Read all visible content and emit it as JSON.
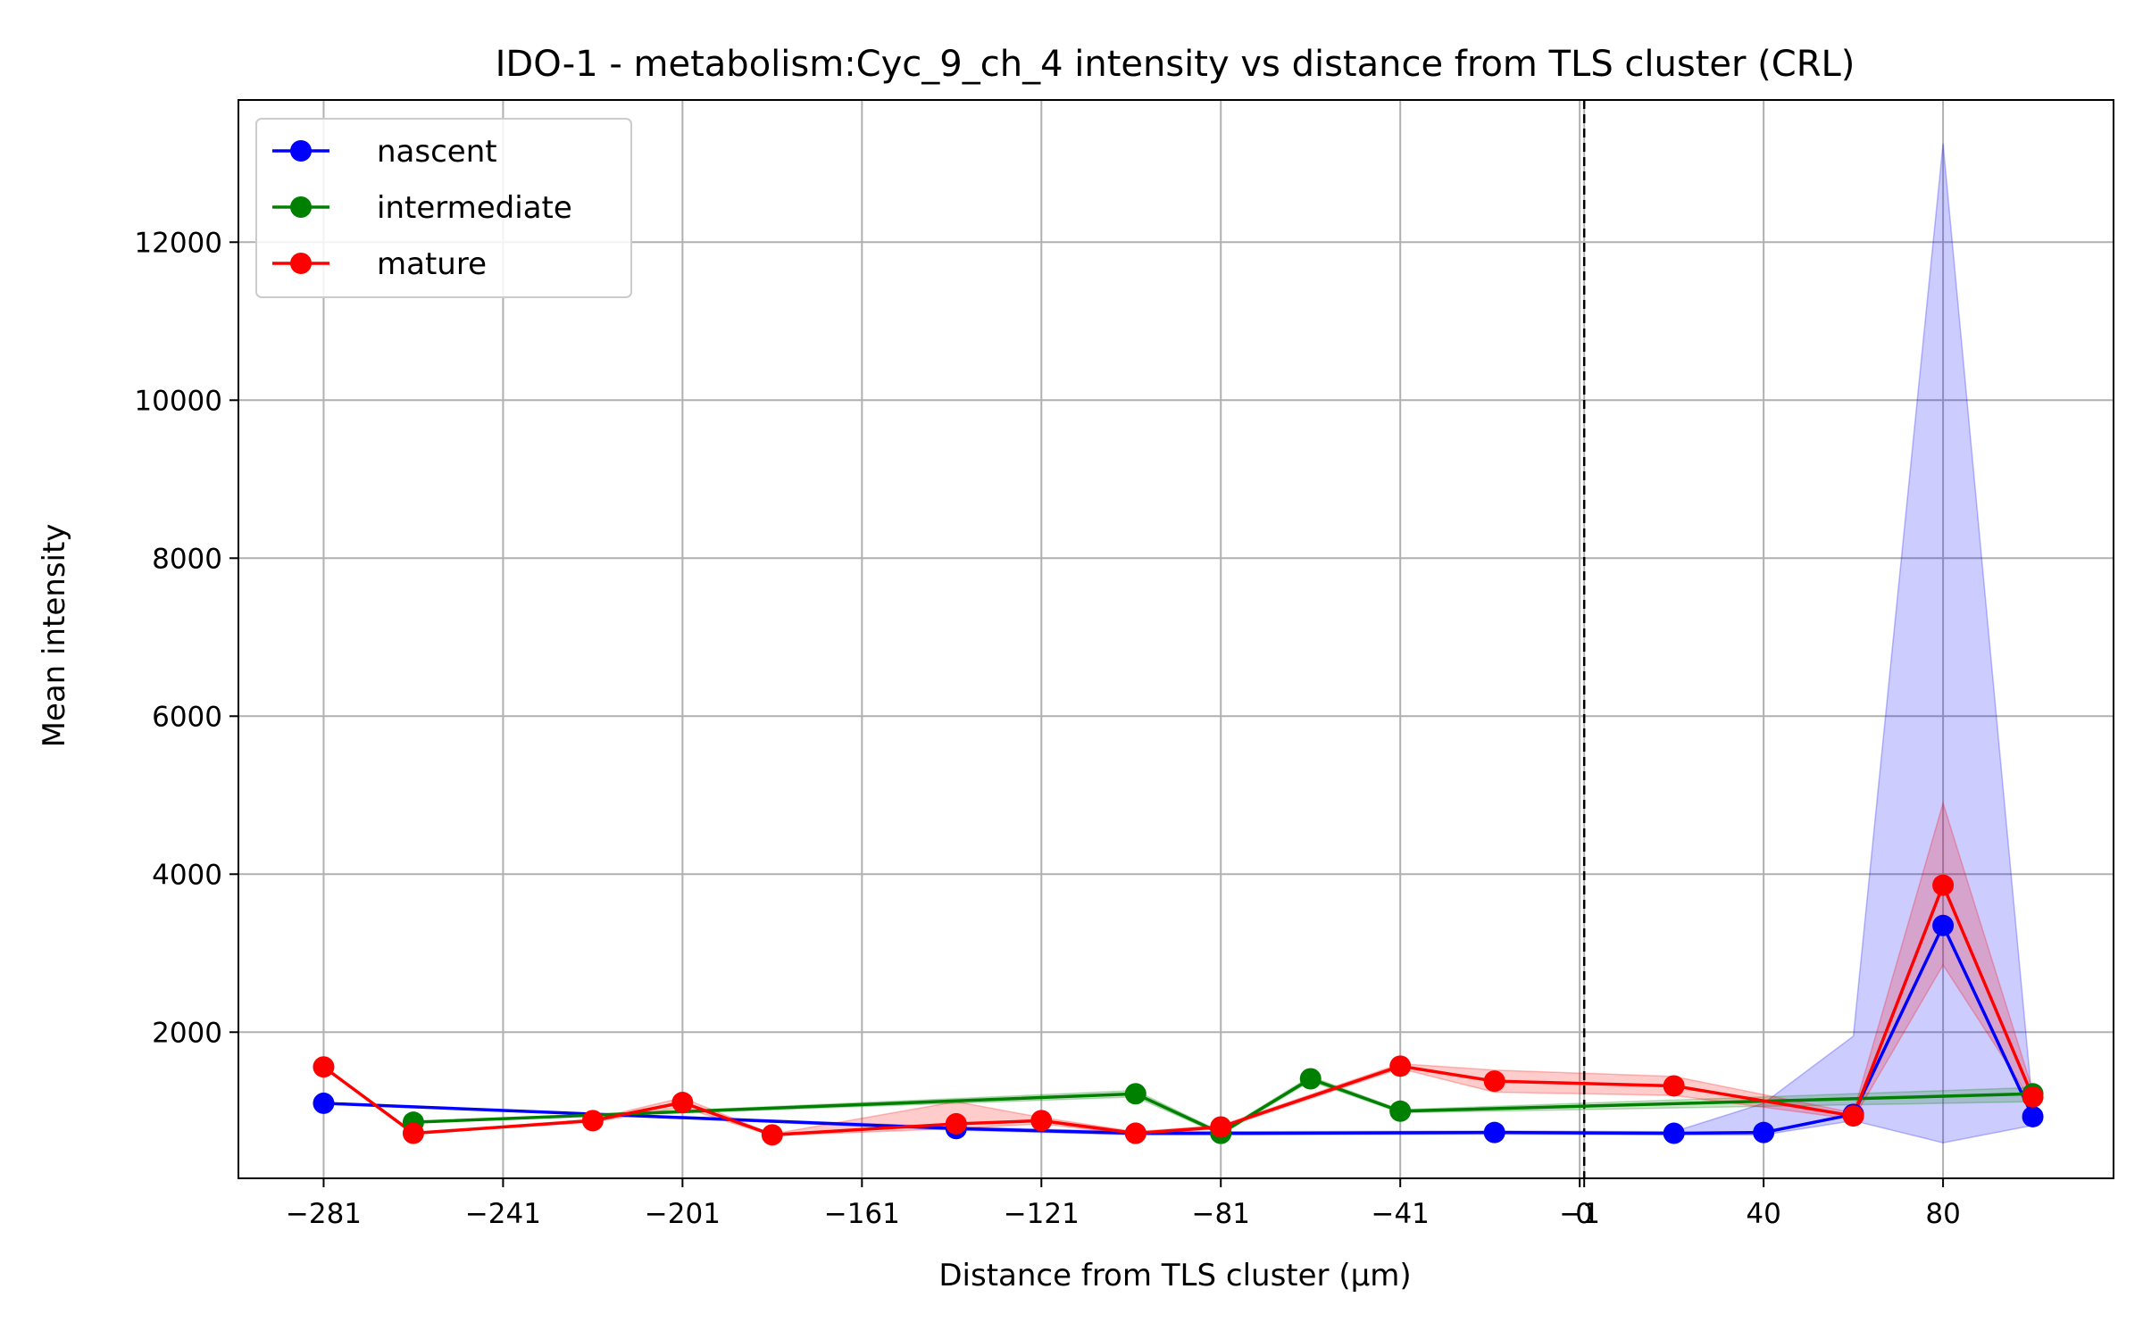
{
  "chart_data": {
    "type": "line",
    "title": "IDO-1 - metabolism:Cyc_9_ch_4 intensity vs distance from TLS cluster (CRL)",
    "xlabel": "Distance from TLS cluster (μm)",
    "ylabel": "Mean intensity",
    "xlim": [
      -300,
      118
    ],
    "ylim": [
      150,
      13800
    ],
    "x_ticks": [
      -281,
      -241,
      -201,
      -161,
      -121,
      -81,
      -41,
      -1,
      0,
      40,
      80
    ],
    "x_tick_labels": [
      "−281",
      "−241",
      "−201",
      "−161",
      "−121",
      "−81",
      "−41",
      "−1",
      "0",
      "40",
      "80"
    ],
    "y_ticks": [
      2000,
      4000,
      6000,
      8000,
      10000,
      12000
    ],
    "y_tick_labels": [
      "2000",
      "4000",
      "6000",
      "8000",
      "10000",
      "12000"
    ],
    "grid": true,
    "legend_position": "top-left",
    "reference_line_x": 0,
    "series": [
      {
        "name": "nascent",
        "color": "#0000ff",
        "x": [
          -281,
          -140,
          -100,
          -81,
          -20,
          20,
          40,
          60,
          80,
          100
        ],
        "y": [
          1100,
          780,
          720,
          720,
          730,
          720,
          730,
          960,
          3350,
          930
        ],
        "band_low": [
          1100,
          760,
          700,
          700,
          710,
          700,
          700,
          880,
          600,
          820
        ],
        "band_high": [
          1100,
          800,
          740,
          740,
          750,
          740,
          1100,
          1950,
          13250,
          1050
        ]
      },
      {
        "name": "intermediate",
        "color": "#008000",
        "x": [
          -261,
          -100,
          -81,
          -61,
          -41,
          100
        ],
        "y": [
          860,
          1220,
          720,
          1410,
          1000,
          1220
        ],
        "band_low": [
          860,
          1180,
          700,
          1380,
          980,
          1120
        ],
        "band_high": [
          860,
          1260,
          740,
          1440,
          1020,
          1300
        ]
      },
      {
        "name": "mature",
        "color": "#ff0000",
        "x": [
          -281,
          -261,
          -221,
          -201,
          -181,
          -140,
          -121,
          -100,
          -81,
          -41,
          -20,
          20,
          60,
          80,
          100
        ],
        "y": [
          1560,
          720,
          880,
          1110,
          700,
          840,
          880,
          720,
          800,
          1570,
          1380,
          1320,
          940,
          3860,
          1180
        ],
        "band_low": [
          1560,
          720,
          860,
          1050,
          690,
          780,
          840,
          700,
          780,
          1540,
          1240,
          1200,
          900,
          2850,
          1100
        ],
        "band_high": [
          1560,
          720,
          900,
          1170,
          710,
          1120,
          920,
          740,
          820,
          1600,
          1520,
          1440,
          980,
          4900,
          1260
        ]
      }
    ]
  }
}
